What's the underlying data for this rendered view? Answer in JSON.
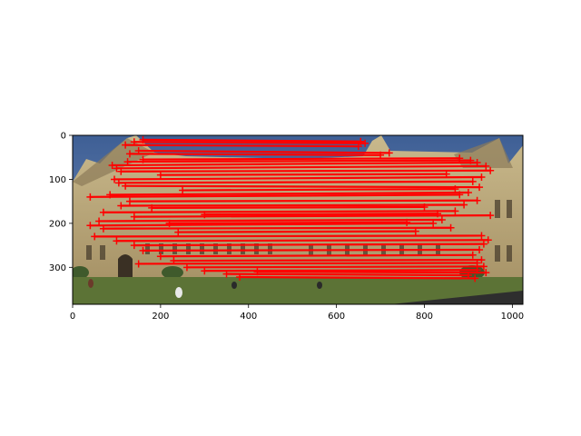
{
  "chart_data": {
    "type": "scatter",
    "title": "",
    "xlabel": "",
    "ylabel": "",
    "xlim": [
      0,
      1024
    ],
    "ylim": [
      384,
      0
    ],
    "y_inverted": true,
    "grid": false,
    "legend": "none",
    "background": "stitched photo of two overlapping views of a gothic building with lawn",
    "marker": "+",
    "match_color": "#ff0000",
    "x_ticks": [
      {
        "value": 0,
        "label": "0"
      },
      {
        "value": 200,
        "label": "200"
      },
      {
        "value": 400,
        "label": "400"
      },
      {
        "value": 600,
        "label": "600"
      },
      {
        "value": 800,
        "label": "800"
      },
      {
        "value": 1000,
        "label": "1000"
      }
    ],
    "y_ticks": [
      {
        "value": 0,
        "label": "0"
      },
      {
        "value": 100,
        "label": "100"
      },
      {
        "value": 200,
        "label": "200"
      },
      {
        "value": 300,
        "label": "300"
      }
    ],
    "series": [
      {
        "lines": [
          {
            "x1": 120,
            "y1": 22,
            "x2": 650,
            "y2": 25
          },
          {
            "x1": 140,
            "y1": 15,
            "x2": 665,
            "y2": 18
          },
          {
            "x1": 160,
            "y1": 10,
            "x2": 655,
            "y2": 14
          },
          {
            "x1": 130,
            "y1": 42,
            "x2": 700,
            "y2": 45
          },
          {
            "x1": 150,
            "y1": 35,
            "x2": 720,
            "y2": 40
          },
          {
            "x1": 90,
            "y1": 68,
            "x2": 920,
            "y2": 62
          },
          {
            "x1": 100,
            "y1": 75,
            "x2": 940,
            "y2": 70
          },
          {
            "x1": 110,
            "y1": 82,
            "x2": 950,
            "y2": 80
          },
          {
            "x1": 95,
            "y1": 100,
            "x2": 930,
            "y2": 95
          },
          {
            "x1": 105,
            "y1": 108,
            "x2": 910,
            "y2": 105
          },
          {
            "x1": 120,
            "y1": 115,
            "x2": 925,
            "y2": 118
          },
          {
            "x1": 40,
            "y1": 140,
            "x2": 880,
            "y2": 135
          },
          {
            "x1": 85,
            "y1": 135,
            "x2": 900,
            "y2": 130
          },
          {
            "x1": 130,
            "y1": 150,
            "x2": 920,
            "y2": 148
          },
          {
            "x1": 110,
            "y1": 160,
            "x2": 890,
            "y2": 158
          },
          {
            "x1": 70,
            "y1": 175,
            "x2": 870,
            "y2": 172
          },
          {
            "x1": 140,
            "y1": 185,
            "x2": 950,
            "y2": 182
          },
          {
            "x1": 60,
            "y1": 195,
            "x2": 840,
            "y2": 192
          },
          {
            "x1": 40,
            "y1": 205,
            "x2": 820,
            "y2": 200
          },
          {
            "x1": 70,
            "y1": 212,
            "x2": 860,
            "y2": 210
          },
          {
            "x1": 50,
            "y1": 230,
            "x2": 930,
            "y2": 228
          },
          {
            "x1": 100,
            "y1": 240,
            "x2": 945,
            "y2": 238
          },
          {
            "x1": 140,
            "y1": 250,
            "x2": 935,
            "y2": 247
          },
          {
            "x1": 160,
            "y1": 262,
            "x2": 925,
            "y2": 260
          },
          {
            "x1": 200,
            "y1": 275,
            "x2": 910,
            "y2": 272
          },
          {
            "x1": 230,
            "y1": 285,
            "x2": 930,
            "y2": 283
          },
          {
            "x1": 150,
            "y1": 292,
            "x2": 920,
            "y2": 290
          },
          {
            "x1": 260,
            "y1": 300,
            "x2": 935,
            "y2": 298
          },
          {
            "x1": 300,
            "y1": 308,
            "x2": 920,
            "y2": 306
          },
          {
            "x1": 350,
            "y1": 315,
            "x2": 900,
            "y2": 318
          },
          {
            "x1": 380,
            "y1": 322,
            "x2": 915,
            "y2": 325
          },
          {
            "x1": 420,
            "y1": 310,
            "x2": 940,
            "y2": 312
          },
          {
            "x1": 200,
            "y1": 90,
            "x2": 850,
            "y2": 88
          },
          {
            "x1": 250,
            "y1": 125,
            "x2": 870,
            "y2": 122
          },
          {
            "x1": 180,
            "y1": 165,
            "x2": 800,
            "y2": 163
          },
          {
            "x1": 220,
            "y1": 200,
            "x2": 760,
            "y2": 198
          },
          {
            "x1": 240,
            "y1": 220,
            "x2": 780,
            "y2": 218
          },
          {
            "x1": 300,
            "y1": 180,
            "x2": 830,
            "y2": 178
          },
          {
            "x1": 160,
            "y1": 55,
            "x2": 880,
            "y2": 52
          },
          {
            "x1": 125,
            "y1": 60,
            "x2": 905,
            "y2": 57
          }
        ]
      }
    ]
  }
}
